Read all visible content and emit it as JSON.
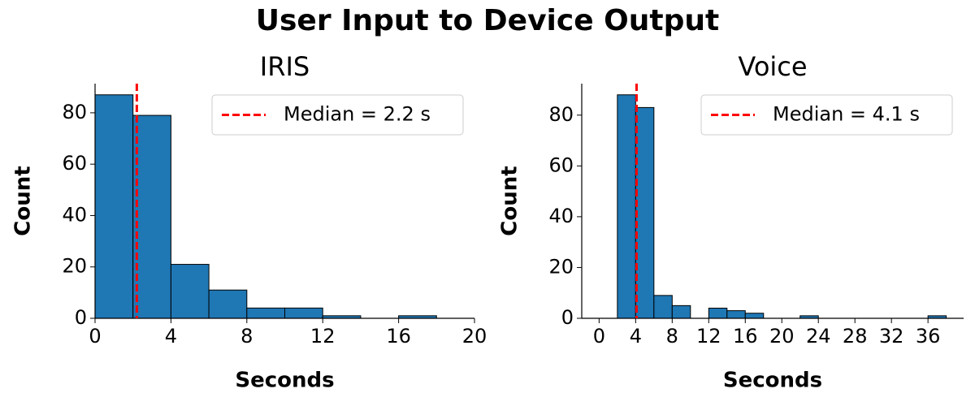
{
  "title": "User Input to Device Output",
  "chart_data": [
    {
      "type": "histogram",
      "title": "IRIS",
      "xlabel": "Seconds",
      "ylabel": "Count",
      "bins": [
        0,
        2,
        4,
        6,
        8,
        10,
        12,
        14,
        16,
        18
      ],
      "values": [
        87,
        79,
        21,
        11,
        4,
        4,
        1,
        0,
        1
      ],
      "color": "#1f77b4",
      "edgecolor": "#000000",
      "xlim": [
        0,
        20
      ],
      "xticks": [
        0,
        4,
        8,
        12,
        16,
        20
      ],
      "ylim": [
        0,
        91.35
      ],
      "yticks": [
        0,
        20,
        40,
        60,
        80
      ],
      "median": {
        "value": 2.2,
        "label": "Median = 2.2 s",
        "color": "#ff0000"
      },
      "legend": "upper right"
    },
    {
      "type": "histogram",
      "title": "Voice",
      "xlabel": "Seconds",
      "ylabel": "Count",
      "bins": [
        0,
        2,
        4,
        6,
        8,
        10,
        12,
        14,
        16,
        18,
        20,
        22,
        24,
        26,
        28,
        30,
        32,
        34,
        36,
        38
      ],
      "values": [
        0,
        88,
        83,
        9,
        5,
        0,
        4,
        3,
        2,
        0,
        0,
        1,
        0,
        0,
        0,
        0,
        0,
        0,
        1
      ],
      "color": "#1f77b4",
      "edgecolor": "#000000",
      "xlim": [
        -1.9,
        39.9
      ],
      "xticks": [
        0,
        4,
        8,
        12,
        16,
        20,
        24,
        28,
        32,
        36
      ],
      "ylim": [
        0,
        92.4
      ],
      "yticks": [
        0,
        20,
        40,
        60,
        80
      ],
      "median": {
        "value": 4.1,
        "label": "Median = 4.1 s",
        "color": "#ff0000"
      },
      "legend": "upper right"
    }
  ]
}
